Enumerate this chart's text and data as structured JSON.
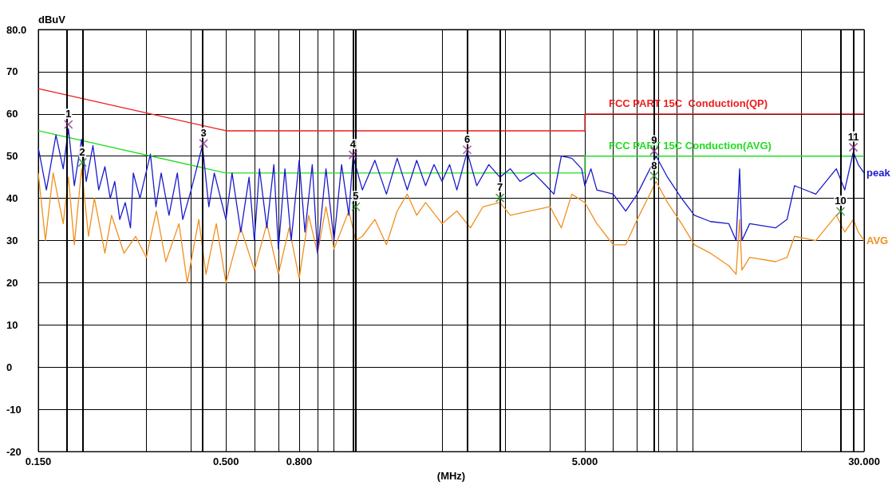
{
  "chart_data": {
    "type": "line",
    "xlabel": "(MHz)",
    "ylabel": "dBuV",
    "log": "x",
    "grid": true,
    "legend": false,
    "xlim": [
      0.15,
      30
    ],
    "xticks": [
      {
        "value": 0.15,
        "label": "0.150"
      },
      {
        "value": 0.3,
        "label": null
      },
      {
        "value": 0.4,
        "label": null
      },
      {
        "value": 0.5,
        "label": "0.500"
      },
      {
        "value": 0.6,
        "label": null
      },
      {
        "value": 0.7,
        "label": null
      },
      {
        "value": 0.8,
        "label": "0.800"
      },
      {
        "value": 0.9,
        "label": null
      },
      {
        "value": 1,
        "label": null
      },
      {
        "value": 2,
        "label": null
      },
      {
        "value": 3,
        "label": null
      },
      {
        "value": 4,
        "label": null
      },
      {
        "value": 5,
        "label": "5.000"
      },
      {
        "value": 6,
        "label": null
      },
      {
        "value": 7,
        "label": null
      },
      {
        "value": 8,
        "label": null
      },
      {
        "value": 9,
        "label": null
      },
      {
        "value": 10,
        "label": null
      },
      {
        "value": 20,
        "label": null
      },
      {
        "value": 30,
        "label": "30.000"
      }
    ],
    "ylim": [
      -20,
      80
    ],
    "yticks": [
      -20,
      -10,
      0,
      10,
      20,
      30,
      40,
      50,
      60,
      70,
      {
        "value": 80,
        "label": "80.0"
      }
    ],
    "series": [
      {
        "name": "FCC PART 15C  Conduction(QP)",
        "color": "#ee1c1c",
        "x": [
          0.15,
          0.5,
          5,
          5,
          30
        ],
        "values": [
          66,
          56,
          56,
          60,
          60
        ]
      },
      {
        "name": "FCC PART 15C Conduction(AVG)",
        "color": "#22dd22",
        "x": [
          0.15,
          0.5,
          5,
          5,
          30
        ],
        "values": [
          56,
          46,
          46,
          50,
          50
        ]
      },
      {
        "name": "AVG",
        "color": "#f0901e",
        "x": [
          0.15,
          0.157,
          0.165,
          0.176,
          0.182,
          0.189,
          0.198,
          0.207,
          0.215,
          0.23,
          0.24,
          0.26,
          0.28,
          0.3,
          0.32,
          0.34,
          0.37,
          0.39,
          0.42,
          0.44,
          0.47,
          0.5,
          0.55,
          0.6,
          0.65,
          0.7,
          0.75,
          0.8,
          0.85,
          0.9,
          0.95,
          1.0,
          1.1,
          1.15,
          1.2,
          1.3,
          1.4,
          1.5,
          1.6,
          1.7,
          1.8,
          2.0,
          2.2,
          2.4,
          2.6,
          2.9,
          3.1,
          3.5,
          4.0,
          4.3,
          4.6,
          5.0,
          5.4,
          6.0,
          6.5,
          7.0,
          7.9,
          8.5,
          9.3,
          10.1,
          11.2,
          12.6,
          13.2,
          13.5,
          13.7,
          14.4,
          17.0,
          18.3,
          19.2,
          22,
          25.1,
          26.5,
          28,
          28.9,
          30
        ],
        "values": [
          46,
          30,
          46,
          34,
          45,
          29,
          47,
          31,
          40,
          27,
          36,
          27,
          31,
          26,
          37,
          25,
          34,
          20,
          35,
          22,
          34,
          20,
          33,
          23,
          34,
          22,
          33,
          21,
          36,
          27,
          38,
          28,
          37,
          30,
          31,
          35,
          29,
          37,
          41,
          36,
          39,
          34,
          37,
          33,
          38,
          39,
          36,
          37,
          38,
          33,
          41,
          39,
          34,
          29,
          29,
          35,
          44,
          39,
          34,
          29,
          27,
          24,
          22,
          35,
          23,
          26,
          25,
          26,
          31,
          30,
          36,
          32,
          35,
          32,
          30
        ]
      },
      {
        "name": "peak",
        "color": "#1a1acc",
        "x": [
          0.15,
          0.158,
          0.168,
          0.176,
          0.182,
          0.189,
          0.198,
          0.204,
          0.213,
          0.221,
          0.23,
          0.238,
          0.245,
          0.253,
          0.262,
          0.271,
          0.276,
          0.288,
          0.308,
          0.319,
          0.33,
          0.347,
          0.366,
          0.379,
          0.4,
          0.43,
          0.448,
          0.464,
          0.5,
          0.52,
          0.55,
          0.58,
          0.6,
          0.62,
          0.65,
          0.68,
          0.7,
          0.73,
          0.76,
          0.8,
          0.83,
          0.87,
          0.9,
          0.95,
          1.0,
          1.05,
          1.1,
          1.13,
          1.2,
          1.3,
          1.4,
          1.5,
          1.6,
          1.7,
          1.8,
          1.9,
          2.0,
          2.1,
          2.2,
          2.35,
          2.5,
          2.7,
          2.9,
          3.1,
          3.3,
          3.6,
          3.9,
          4.1,
          4.3,
          4.6,
          4.9,
          5.0,
          5.2,
          5.4,
          6.0,
          6.5,
          7.0,
          7.7,
          7.9,
          8.5,
          9.3,
          10.1,
          11.2,
          12.6,
          13.2,
          13.5,
          13.7,
          14.4,
          17.0,
          18.3,
          19.2,
          22,
          25.1,
          26.5,
          28,
          28.9,
          30
        ],
        "values": [
          52,
          42,
          55,
          47,
          56.5,
          43,
          54,
          44,
          52.5,
          42,
          47.5,
          40,
          44,
          35,
          39,
          33,
          46,
          40,
          50.5,
          38,
          46,
          36,
          46,
          35,
          42,
          52.5,
          38,
          46,
          35,
          46,
          32,
          45,
          30,
          47,
          33,
          48,
          28,
          47,
          30,
          49,
          32,
          48,
          27,
          47,
          30,
          48,
          36,
          50,
          42,
          49,
          41,
          49.5,
          42,
          49,
          43,
          48,
          44,
          48,
          42,
          51,
          43,
          48,
          45,
          47,
          44,
          46,
          43,
          41,
          50,
          49.5,
          47,
          43,
          47,
          42,
          41,
          37,
          41,
          48,
          50,
          45,
          40,
          36,
          34.5,
          34,
          30,
          47,
          30,
          34,
          33,
          35,
          43,
          41,
          47,
          42,
          51,
          48,
          46
        ]
      },
      {
        "type": "scatter",
        "marker": "cross",
        "color": "#8b2f8b",
        "x": [
          0.182,
          0.433,
          1.13,
          2.35,
          7.8,
          28
        ],
        "values": [
          57.5,
          53,
          50.3,
          51.5,
          51.2,
          52.1
        ]
      },
      {
        "type": "scatter",
        "marker": "cross",
        "color": "#2e8b2e",
        "x": [
          0.199,
          1.15,
          2.9,
          7.8,
          25.8
        ],
        "values": [
          48.5,
          38,
          40.1,
          45.3,
          36.9
        ]
      }
    ],
    "annotations": [
      {
        "text": "1",
        "x": 0.182,
        "y": 57.5
      },
      {
        "text": "2",
        "x": 0.199,
        "y": 48.5
      },
      {
        "text": "3",
        "x": 0.433,
        "y": 53
      },
      {
        "text": "4",
        "x": 1.13,
        "y": 50.3
      },
      {
        "text": "5",
        "x": 1.15,
        "y": 38
      },
      {
        "text": "6",
        "x": 2.35,
        "y": 51.5
      },
      {
        "text": "7",
        "x": 2.9,
        "y": 40.1
      },
      {
        "text": "8",
        "x": 7.8,
        "y": 45.3
      },
      {
        "text": "9",
        "x": 7.8,
        "y": 51.2
      },
      {
        "text": "10",
        "x": 25.8,
        "y": 36.9
      },
      {
        "text": "11",
        "x": 28,
        "y": 52.1
      }
    ],
    "ref_lines": [
      {
        "axis": "x",
        "value": 0.182,
        "color": "#000000"
      },
      {
        "axis": "x",
        "value": 0.199,
        "color": "#000000"
      },
      {
        "axis": "x",
        "value": 0.433,
        "color": "#000000"
      },
      {
        "axis": "x",
        "value": 1.13,
        "color": "#000000"
      },
      {
        "axis": "x",
        "value": 1.15,
        "color": "#000000"
      },
      {
        "axis": "x",
        "value": 2.35,
        "color": "#000000"
      },
      {
        "axis": "x",
        "value": 2.9,
        "color": "#000000"
      },
      {
        "axis": "x",
        "value": 7.8,
        "color": "#000000"
      },
      {
        "axis": "x",
        "value": 25.8,
        "color": "#000000"
      },
      {
        "axis": "x",
        "value": 28,
        "color": "#000000"
      }
    ]
  }
}
